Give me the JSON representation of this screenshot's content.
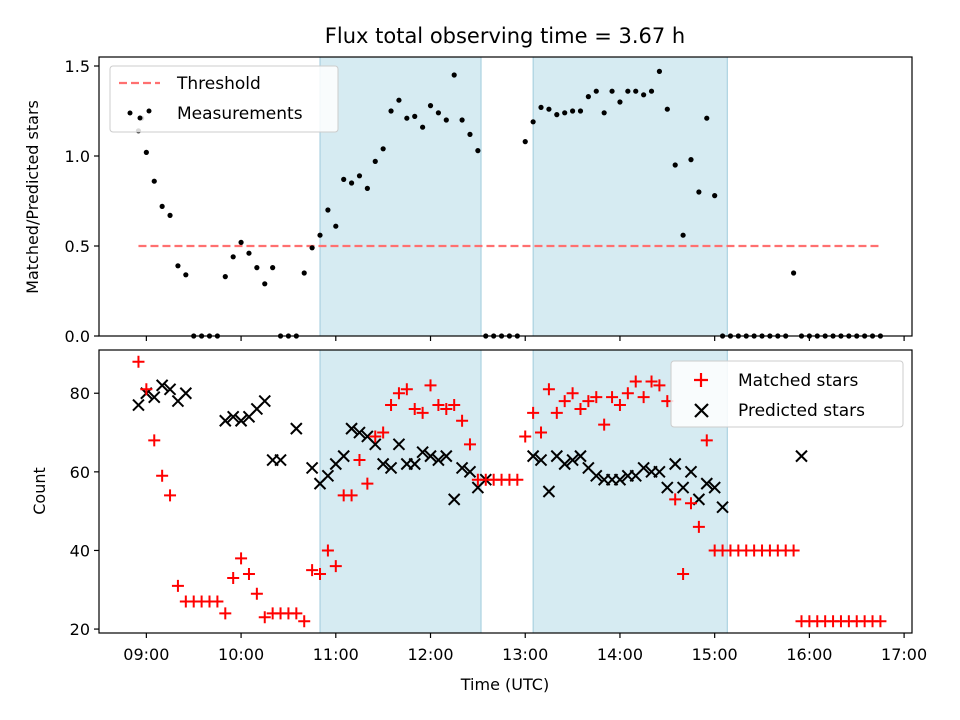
{
  "chart_data": [
    {
      "type": "scatter",
      "title": "Flux total observing time = 3.67 h",
      "ylabel": "Matched/Predicted stars",
      "xlabel": "",
      "xlim": [
        "08:30",
        "17:05"
      ],
      "ylim": [
        0,
        1.55
      ],
      "yticks": [
        "0.0",
        "0.5",
        "1.0",
        "1.5"
      ],
      "shaded_intervals": [
        [
          "10:50",
          "12:32"
        ],
        [
          "13:05",
          "15:08"
        ]
      ],
      "threshold": {
        "name": "Threshold",
        "value": 0.5,
        "x_range": [
          "08:55",
          "16:45"
        ],
        "color": "#ff7070",
        "style": "dashed"
      },
      "legend": {
        "position": "top-left",
        "entries": [
          "Threshold",
          "Measurements"
        ]
      },
      "series": [
        {
          "name": "Measurements",
          "color": "#000000",
          "marker": "dot",
          "x": [
            "08:55",
            "08:57",
            "09:00",
            "09:05",
            "09:10",
            "09:15",
            "09:20",
            "09:25",
            "09:30",
            "09:35",
            "09:40",
            "09:45",
            "09:50",
            "09:55",
            "10:00",
            "10:05",
            "10:10",
            "10:15",
            "10:20",
            "10:25",
            "10:30",
            "10:35",
            "10:40",
            "10:45",
            "10:50",
            "10:55",
            "11:00",
            "11:05",
            "11:10",
            "11:15",
            "11:20",
            "11:25",
            "11:30",
            "11:35",
            "11:40",
            "11:45",
            "11:50",
            "11:55",
            "12:00",
            "12:05",
            "12:10",
            "12:15",
            "12:20",
            "12:25",
            "12:30",
            "12:35",
            "12:40",
            "12:45",
            "12:50",
            "12:55",
            "13:00",
            "13:05",
            "13:10",
            "13:15",
            "13:20",
            "13:25",
            "13:30",
            "13:35",
            "13:40",
            "13:45",
            "13:50",
            "13:55",
            "14:00",
            "14:05",
            "14:10",
            "14:15",
            "14:20",
            "14:25",
            "14:30",
            "14:35",
            "14:40",
            "14:45",
            "14:50",
            "14:55",
            "15:00",
            "15:05",
            "15:10",
            "15:15",
            "15:20",
            "15:25",
            "15:30",
            "15:35",
            "15:40",
            "15:45",
            "15:50",
            "15:55",
            "16:00",
            "16:05",
            "16:10",
            "16:15",
            "16:20",
            "16:25",
            "16:30",
            "16:35",
            "16:40",
            "16:45"
          ],
          "y": [
            1.14,
            1.21,
            1.02,
            0.86,
            0.72,
            0.67,
            0.39,
            0.34,
            0,
            0,
            0,
            0,
            0.33,
            0.44,
            0.52,
            0.46,
            0.38,
            0.29,
            0.38,
            0,
            0,
            0,
            0.35,
            0.49,
            0.56,
            0.7,
            0.61,
            0.87,
            0.85,
            0.89,
            0.82,
            0.97,
            1.04,
            1.25,
            1.31,
            1.21,
            1.22,
            1.16,
            1.28,
            1.24,
            1.2,
            1.45,
            1.2,
            1.12,
            1.03,
            0,
            0,
            0,
            0,
            0,
            1.08,
            1.19,
            1.27,
            1.26,
            1.23,
            1.24,
            1.25,
            1.25,
            1.33,
            1.36,
            1.24,
            1.36,
            1.3,
            1.36,
            1.36,
            1.34,
            1.36,
            1.47,
            1.26,
            0.95,
            0.56,
            0.98,
            0.8,
            1.21,
            0.78,
            0,
            0,
            0,
            0,
            0,
            0,
            0,
            0,
            0,
            0.35,
            0,
            0,
            0,
            0,
            0,
            0,
            0,
            0,
            0,
            0,
            0
          ]
        }
      ]
    },
    {
      "type": "scatter",
      "title": "",
      "ylabel": "Count",
      "xlabel": "Time (UTC)",
      "xlim": [
        "08:30",
        "17:05"
      ],
      "ylim": [
        19,
        91
      ],
      "yticks": [
        20,
        40,
        60,
        80
      ],
      "xticks": [
        "09:00",
        "10:00",
        "11:00",
        "12:00",
        "13:00",
        "14:00",
        "15:00",
        "16:00",
        "17:00"
      ],
      "shaded_intervals": [
        [
          "10:50",
          "12:32"
        ],
        [
          "13:05",
          "15:08"
        ]
      ],
      "legend": {
        "position": "top-right",
        "entries": [
          "Matched stars",
          "Predicted stars"
        ]
      },
      "series": [
        {
          "name": "Matched stars",
          "color": "#ff0000",
          "marker": "plus",
          "x": [
            "08:55",
            "09:00",
            "09:05",
            "09:10",
            "09:15",
            "09:20",
            "09:25",
            "09:30",
            "09:35",
            "09:40",
            "09:45",
            "09:50",
            "09:55",
            "10:00",
            "10:05",
            "10:10",
            "10:15",
            "10:20",
            "10:25",
            "10:30",
            "10:35",
            "10:40",
            "10:45",
            "10:50",
            "10:55",
            "11:00",
            "11:05",
            "11:10",
            "11:15",
            "11:20",
            "11:25",
            "11:30",
            "11:35",
            "11:40",
            "11:45",
            "11:50",
            "11:55",
            "12:00",
            "12:05",
            "12:10",
            "12:15",
            "12:20",
            "12:25",
            "12:30",
            "12:35",
            "12:40",
            "12:45",
            "12:50",
            "12:55",
            "13:00",
            "13:05",
            "13:10",
            "13:15",
            "13:20",
            "13:25",
            "13:30",
            "13:35",
            "13:40",
            "13:45",
            "13:50",
            "13:55",
            "14:00",
            "14:05",
            "14:10",
            "14:15",
            "14:20",
            "14:25",
            "14:30",
            "14:35",
            "14:40",
            "14:45",
            "14:50",
            "14:55",
            "15:00",
            "15:05",
            "15:10",
            "15:15",
            "15:20",
            "15:25",
            "15:30",
            "15:35",
            "15:40",
            "15:45",
            "15:50",
            "15:55",
            "16:00",
            "16:05",
            "16:10",
            "16:15",
            "16:20",
            "16:25",
            "16:30",
            "16:35",
            "16:40",
            "16:45"
          ],
          "y": [
            88,
            81,
            68,
            59,
            54,
            31,
            27,
            27,
            27,
            27,
            27,
            24,
            33,
            38,
            34,
            29,
            23,
            24,
            24,
            24,
            24,
            22,
            35,
            34,
            40,
            36,
            54,
            54,
            63,
            57,
            69,
            70,
            77,
            80,
            81,
            76,
            75,
            82,
            77,
            76,
            77,
            73,
            67,
            58,
            58,
            58,
            58,
            58,
            58,
            69,
            75,
            70,
            81,
            75,
            78,
            80,
            76,
            78,
            79,
            72,
            79,
            77,
            80,
            83,
            79,
            83,
            82,
            78,
            53,
            34,
            52,
            46,
            68,
            40,
            40,
            40,
            40,
            40,
            40,
            40,
            40,
            40,
            40,
            40,
            22,
            22,
            22,
            22,
            22,
            22,
            22,
            22,
            22,
            22,
            22
          ]
        },
        {
          "name": "Predicted stars",
          "color": "#000000",
          "marker": "x",
          "x": [
            "08:55",
            "09:00",
            "09:05",
            "09:10",
            "09:15",
            "09:20",
            "09:25",
            "09:50",
            "09:55",
            "10:00",
            "10:05",
            "10:10",
            "10:15",
            "10:20",
            "10:25",
            "10:35",
            "10:45",
            "10:50",
            "10:55",
            "11:00",
            "11:05",
            "11:10",
            "11:15",
            "11:20",
            "11:25",
            "11:30",
            "11:35",
            "11:40",
            "11:45",
            "11:50",
            "11:55",
            "12:00",
            "12:05",
            "12:10",
            "12:15",
            "12:20",
            "12:25",
            "12:30",
            "12:35",
            "13:05",
            "13:10",
            "13:15",
            "13:20",
            "13:25",
            "13:30",
            "13:35",
            "13:40",
            "13:45",
            "13:50",
            "13:55",
            "14:00",
            "14:05",
            "14:10",
            "14:15",
            "14:20",
            "14:25",
            "14:30",
            "14:35",
            "14:40",
            "14:45",
            "14:50",
            "14:55",
            "15:00",
            "15:05",
            "15:55"
          ],
          "y": [
            77,
            80,
            79,
            82,
            81,
            78,
            80,
            73,
            74,
            73,
            74,
            76,
            78,
            63,
            63,
            71,
            61,
            57,
            59,
            62,
            64,
            71,
            70,
            69,
            67,
            62,
            61,
            67,
            62,
            62,
            65,
            64,
            63,
            64,
            53,
            61,
            60,
            56,
            58,
            64,
            63,
            55,
            64,
            62,
            63,
            64,
            61,
            59,
            58,
            58,
            58,
            59,
            59,
            61,
            60,
            60,
            56,
            62,
            56,
            60,
            53,
            57,
            56,
            51,
            64
          ]
        }
      ]
    }
  ]
}
